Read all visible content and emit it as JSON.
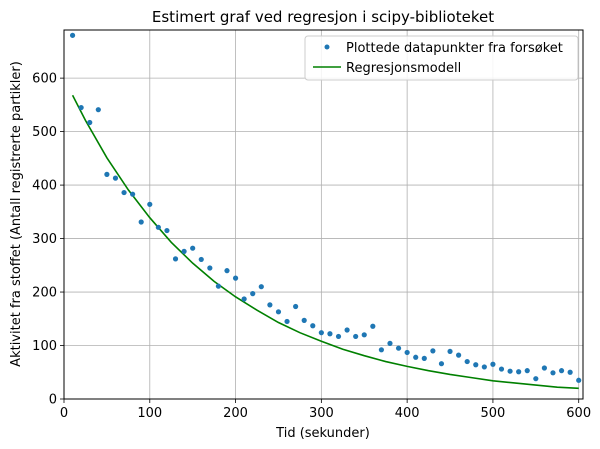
{
  "chart_data": {
    "type": "scatter",
    "title": "Estimert graf ved regresjon i scipy-biblioteket",
    "xlabel": "Tid (sekunder)",
    "ylabel": "Aktivitet fra stoffet (Antall registrerte partikler)",
    "xlim": [
      0,
      605
    ],
    "ylim": [
      0,
      690
    ],
    "xticks": [
      0,
      100,
      200,
      300,
      400,
      500,
      600
    ],
    "yticks": [
      0,
      100,
      200,
      300,
      400,
      500,
      600
    ],
    "grid": true,
    "legend_position": "top-right",
    "series": [
      {
        "name": "Plottede datapunkter fra forsøket",
        "kind": "scatter",
        "color": "#1f77b4",
        "x": [
          10,
          20,
          30,
          40,
          50,
          60,
          70,
          80,
          90,
          100,
          110,
          120,
          130,
          140,
          150,
          160,
          170,
          180,
          190,
          200,
          210,
          220,
          230,
          240,
          250,
          260,
          270,
          280,
          290,
          300,
          310,
          320,
          330,
          340,
          350,
          360,
          370,
          380,
          390,
          400,
          410,
          420,
          430,
          440,
          450,
          460,
          470,
          480,
          490,
          500,
          510,
          520,
          530,
          540,
          550,
          560,
          570,
          580,
          590,
          600
        ],
        "y": [
          680,
          545,
          517,
          541,
          420,
          413,
          386,
          383,
          331,
          364,
          321,
          315,
          262,
          276,
          282,
          261,
          245,
          211,
          240,
          226,
          187,
          197,
          210,
          176,
          163,
          145,
          173,
          147,
          137,
          124,
          122,
          117,
          129,
          117,
          120,
          136,
          92,
          104,
          95,
          87,
          78,
          76,
          90,
          66,
          89,
          82,
          70,
          64,
          60,
          65,
          56,
          52,
          51,
          53,
          38,
          58,
          49,
          53,
          50,
          35
        ]
      },
      {
        "name": "Regresjonsmodell",
        "kind": "line",
        "color": "#008000",
        "x": [
          10,
          25,
          50,
          75,
          100,
          125,
          150,
          175,
          200,
          225,
          250,
          275,
          300,
          325,
          350,
          375,
          400,
          425,
          450,
          475,
          500,
          525,
          550,
          575,
          600
        ],
        "y": [
          568,
          521,
          451,
          391,
          339,
          293,
          254,
          220,
          191,
          166,
          143,
          124,
          108,
          93,
          81,
          70,
          61,
          53,
          46,
          40,
          34,
          30,
          26,
          22,
          20
        ]
      }
    ]
  }
}
